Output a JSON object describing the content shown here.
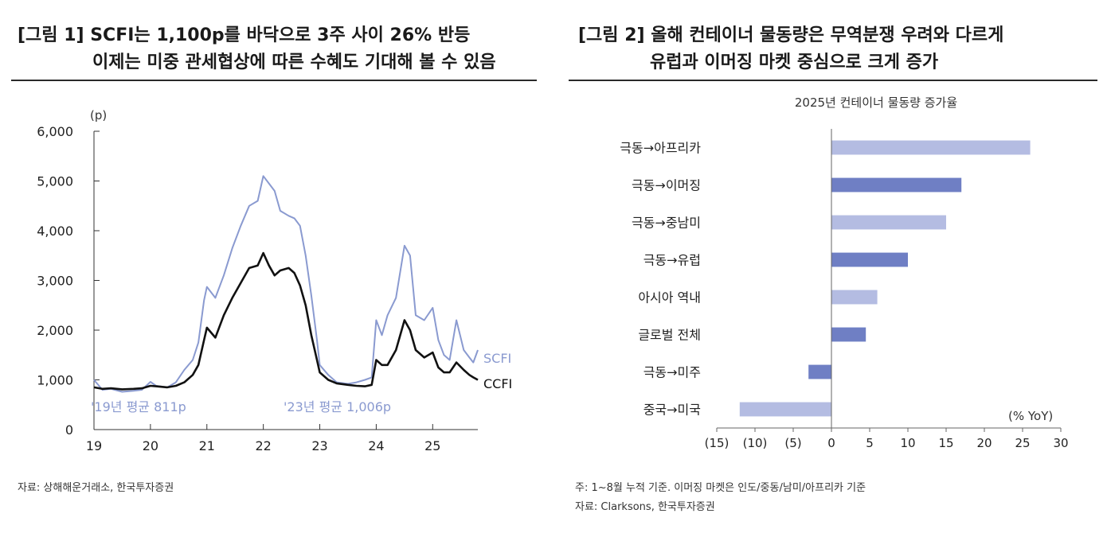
{
  "figure1": {
    "title_line1": "[그림 1] SCFI는 1,100p를 바닥으로 3주 사이 26% 반등",
    "title_line2": "이제는 미중 관세협상에 따른 수혜도 기대해 볼 수 있음",
    "source": "자료: 상해해운거래소, 한국투자증권"
  },
  "figure2": {
    "title_line1": "[그림 2] 올해 컨테이너 물동량은 무역분쟁 우려와 다르게",
    "title_line2": "유럽과 이머징 마켓 중심으로 크게 증가",
    "note": "주: 1~8월 누적 기준. 이머징 마켓은 인도/중동/남미/아프리카 기준",
    "source": "자료: Clarksons, 한국투자증권"
  },
  "chart_data": [
    {
      "type": "line",
      "unit_label": "(p)",
      "ylim": [
        0,
        6000
      ],
      "yticks": [
        "0",
        "1,000",
        "2,000",
        "3,000",
        "4,000",
        "5,000",
        "6,000"
      ],
      "xlim": [
        2019,
        2025.8
      ],
      "xticks": [
        "19",
        "20",
        "21",
        "22",
        "23",
        "24",
        "25"
      ],
      "annotations": [
        "'19년 평균 811p",
        "'23년 평균 1,006p"
      ],
      "series": [
        {
          "name": "SCFI",
          "color": "#8a9ad0",
          "points": [
            [
              2019,
              1000
            ],
            [
              2019.15,
              800
            ],
            [
              2019.3,
              820
            ],
            [
              2019.5,
              760
            ],
            [
              2019.7,
              780
            ],
            [
              2019.85,
              800
            ],
            [
              2020.0,
              960
            ],
            [
              2020.1,
              880
            ],
            [
              2020.3,
              850
            ],
            [
              2020.45,
              950
            ],
            [
              2020.6,
              1200
            ],
            [
              2020.75,
              1400
            ],
            [
              2020.85,
              1750
            ],
            [
              2020.95,
              2600
            ],
            [
              2021.0,
              2870
            ],
            [
              2021.15,
              2650
            ],
            [
              2021.3,
              3100
            ],
            [
              2021.45,
              3650
            ],
            [
              2021.6,
              4100
            ],
            [
              2021.75,
              4500
            ],
            [
              2021.9,
              4600
            ],
            [
              2022.0,
              5100
            ],
            [
              2022.1,
              4950
            ],
            [
              2022.2,
              4800
            ],
            [
              2022.3,
              4400
            ],
            [
              2022.45,
              4300
            ],
            [
              2022.55,
              4250
            ],
            [
              2022.65,
              4100
            ],
            [
              2022.75,
              3500
            ],
            [
              2022.85,
              2700
            ],
            [
              2022.95,
              1800
            ],
            [
              2023.0,
              1300
            ],
            [
              2023.15,
              1100
            ],
            [
              2023.3,
              950
            ],
            [
              2023.5,
              920
            ],
            [
              2023.65,
              950
            ],
            [
              2023.8,
              1000
            ],
            [
              2023.92,
              1050
            ],
            [
              2024.0,
              2200
            ],
            [
              2024.1,
              1900
            ],
            [
              2024.2,
              2300
            ],
            [
              2024.35,
              2650
            ],
            [
              2024.5,
              3700
            ],
            [
              2024.6,
              3500
            ],
            [
              2024.7,
              2300
            ],
            [
              2024.85,
              2200
            ],
            [
              2025.0,
              2450
            ],
            [
              2025.1,
              1800
            ],
            [
              2025.2,
              1500
            ],
            [
              2025.3,
              1400
            ],
            [
              2025.42,
              2200
            ],
            [
              2025.55,
              1600
            ],
            [
              2025.65,
              1450
            ],
            [
              2025.72,
              1350
            ],
            [
              2025.8,
              1600
            ]
          ]
        },
        {
          "name": "CCFI",
          "color": "#111111",
          "points": [
            [
              2019,
              850
            ],
            [
              2019.15,
              820
            ],
            [
              2019.3,
              830
            ],
            [
              2019.5,
              810
            ],
            [
              2019.7,
              820
            ],
            [
              2019.85,
              830
            ],
            [
              2020.0,
              880
            ],
            [
              2020.1,
              870
            ],
            [
              2020.3,
              850
            ],
            [
              2020.45,
              880
            ],
            [
              2020.6,
              950
            ],
            [
              2020.75,
              1100
            ],
            [
              2020.85,
              1300
            ],
            [
              2020.95,
              1800
            ],
            [
              2021.0,
              2050
            ],
            [
              2021.15,
              1850
            ],
            [
              2021.3,
              2300
            ],
            [
              2021.45,
              2650
            ],
            [
              2021.6,
              2950
            ],
            [
              2021.75,
              3250
            ],
            [
              2021.9,
              3300
            ],
            [
              2022.0,
              3550
            ],
            [
              2022.1,
              3300
            ],
            [
              2022.2,
              3100
            ],
            [
              2022.3,
              3200
            ],
            [
              2022.45,
              3250
            ],
            [
              2022.55,
              3150
            ],
            [
              2022.65,
              2900
            ],
            [
              2022.75,
              2500
            ],
            [
              2022.85,
              1900
            ],
            [
              2022.95,
              1400
            ],
            [
              2023.0,
              1150
            ],
            [
              2023.15,
              1000
            ],
            [
              2023.3,
              930
            ],
            [
              2023.5,
              900
            ],
            [
              2023.65,
              880
            ],
            [
              2023.8,
              870
            ],
            [
              2023.92,
              900
            ],
            [
              2024.0,
              1400
            ],
            [
              2024.1,
              1300
            ],
            [
              2024.2,
              1300
            ],
            [
              2024.35,
              1600
            ],
            [
              2024.5,
              2200
            ],
            [
              2024.6,
              2000
            ],
            [
              2024.7,
              1600
            ],
            [
              2024.85,
              1450
            ],
            [
              2025.0,
              1550
            ],
            [
              2025.1,
              1250
            ],
            [
              2025.2,
              1150
            ],
            [
              2025.3,
              1150
            ],
            [
              2025.42,
              1350
            ],
            [
              2025.55,
              1200
            ],
            [
              2025.65,
              1100
            ],
            [
              2025.72,
              1050
            ],
            [
              2025.8,
              1000
            ]
          ]
        }
      ]
    },
    {
      "type": "bar",
      "orientation": "horizontal",
      "title": "2025년 컨테이너 물동량 증가율",
      "unit_label": "(% YoY)",
      "xlim": [
        -15,
        30
      ],
      "xticks": [
        "(15)",
        "(10)",
        "(5)",
        "0",
        "5",
        "10",
        "15",
        "20",
        "25",
        "30"
      ],
      "categories": [
        "극동→아프리카",
        "극동→이머징",
        "극동→중남미",
        "극동→유럽",
        "아시아 역내",
        "글로벌 전체",
        "극동→미주",
        "중국→미국"
      ],
      "values": [
        26,
        17,
        15,
        10,
        6,
        4.5,
        -3,
        -12
      ],
      "colors": [
        "#b4bce2",
        "#6f7fc4",
        "#b4bce2",
        "#6f7fc4",
        "#b4bce2",
        "#6f7fc4",
        "#6f7fc4",
        "#b4bce2"
      ]
    }
  ]
}
